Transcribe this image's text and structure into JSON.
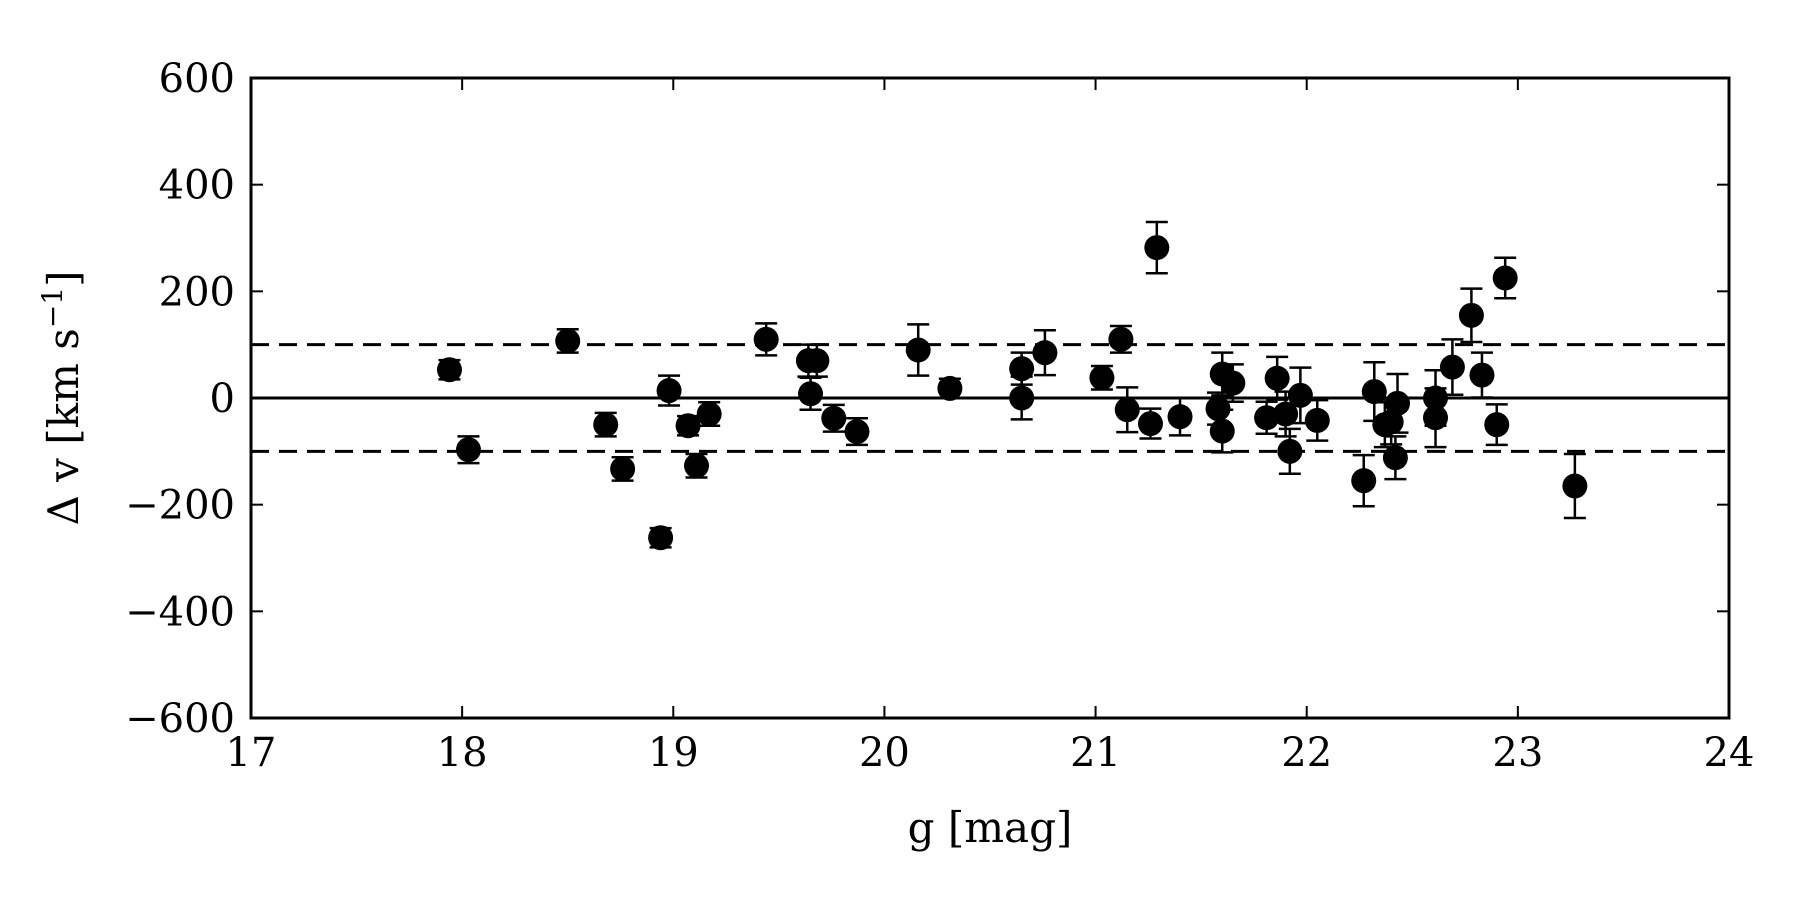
{
  "chart_data": {
    "type": "scatter",
    "title": "",
    "xlabel": "g [mag]",
    "ylabel": "Δ v [km s⁻¹]",
    "xlim": [
      17,
      24
    ],
    "ylim": [
      -600,
      600
    ],
    "x_ticks": [
      17,
      18,
      19,
      20,
      21,
      22,
      23,
      24
    ],
    "y_ticks": [
      -600,
      -400,
      -200,
      0,
      200,
      400,
      600
    ],
    "x_tick_labels": [
      "17",
      "18",
      "19",
      "20",
      "21",
      "22",
      "23",
      "24"
    ],
    "y_tick_labels": [
      "−600",
      "−400",
      "−200",
      "0",
      "200",
      "400",
      "600"
    ],
    "grid": false,
    "reference_lines": [
      {
        "y": 0,
        "style": "solid"
      },
      {
        "y": 100,
        "style": "dashed"
      },
      {
        "y": -100,
        "style": "dashed"
      }
    ],
    "series": [
      {
        "marker": "filled-circle",
        "color": "#000000",
        "points": [
          {
            "x": 17.94,
            "y": 53,
            "err": 18
          },
          {
            "x": 18.03,
            "y": -97,
            "err": 25
          },
          {
            "x": 18.5,
            "y": 107,
            "err": 22
          },
          {
            "x": 18.68,
            "y": -50,
            "err": 22
          },
          {
            "x": 18.76,
            "y": -133,
            "err": 22
          },
          {
            "x": 18.94,
            "y": -262,
            "err": 18
          },
          {
            "x": 18.98,
            "y": 14,
            "err": 28
          },
          {
            "x": 19.07,
            "y": -52,
            "err": 18
          },
          {
            "x": 19.11,
            "y": -127,
            "err": 22
          },
          {
            "x": 19.17,
            "y": -30,
            "err": 22
          },
          {
            "x": 19.44,
            "y": 110,
            "err": 30
          },
          {
            "x": 19.64,
            "y": 70,
            "err": 30
          },
          {
            "x": 19.65,
            "y": 8,
            "err": 30
          },
          {
            "x": 19.68,
            "y": 70,
            "err": 30
          },
          {
            "x": 19.76,
            "y": -38,
            "err": 25
          },
          {
            "x": 19.87,
            "y": -63,
            "err": 25
          },
          {
            "x": 20.16,
            "y": 90,
            "err": 48
          },
          {
            "x": 20.31,
            "y": 18,
            "err": 18
          },
          {
            "x": 20.65,
            "y": 55,
            "err": 30
          },
          {
            "x": 20.65,
            "y": 0,
            "err": 40
          },
          {
            "x": 20.76,
            "y": 85,
            "err": 42
          },
          {
            "x": 21.03,
            "y": 38,
            "err": 22
          },
          {
            "x": 21.12,
            "y": 110,
            "err": 25
          },
          {
            "x": 21.15,
            "y": -22,
            "err": 42
          },
          {
            "x": 21.26,
            "y": -48,
            "err": 28
          },
          {
            "x": 21.29,
            "y": 282,
            "err": 48
          },
          {
            "x": 21.4,
            "y": -35,
            "err": 35
          },
          {
            "x": 21.58,
            "y": -20,
            "err": 30
          },
          {
            "x": 21.6,
            "y": 45,
            "err": 40
          },
          {
            "x": 21.6,
            "y": -62,
            "err": 40
          },
          {
            "x": 21.65,
            "y": 28,
            "err": 35
          },
          {
            "x": 21.81,
            "y": -37,
            "err": 30
          },
          {
            "x": 21.86,
            "y": 37,
            "err": 40
          },
          {
            "x": 21.9,
            "y": -30,
            "err": 42
          },
          {
            "x": 21.92,
            "y": -100,
            "err": 42
          },
          {
            "x": 21.97,
            "y": 5,
            "err": 52
          },
          {
            "x": 22.05,
            "y": -42,
            "err": 38
          },
          {
            "x": 22.27,
            "y": -155,
            "err": 48
          },
          {
            "x": 22.32,
            "y": 12,
            "err": 55
          },
          {
            "x": 22.37,
            "y": -50,
            "err": 42
          },
          {
            "x": 22.4,
            "y": -45,
            "err": 42
          },
          {
            "x": 22.42,
            "y": -112,
            "err": 40
          },
          {
            "x": 22.43,
            "y": -10,
            "err": 55
          },
          {
            "x": 22.61,
            "y": 0,
            "err": 52
          },
          {
            "x": 22.61,
            "y": -37,
            "err": 55
          },
          {
            "x": 22.69,
            "y": 58,
            "err": 52
          },
          {
            "x": 22.78,
            "y": 155,
            "err": 50
          },
          {
            "x": 22.83,
            "y": 43,
            "err": 42
          },
          {
            "x": 22.9,
            "y": -50,
            "err": 38
          },
          {
            "x": 22.94,
            "y": 225,
            "err": 38
          },
          {
            "x": 23.27,
            "y": -165,
            "err": 60
          }
        ]
      }
    ]
  }
}
